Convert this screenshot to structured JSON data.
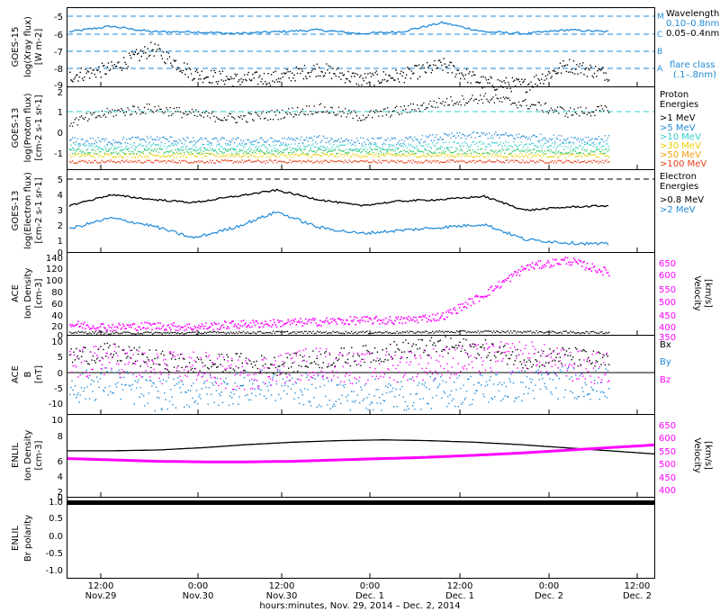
{
  "colors": {
    "black": "#000000",
    "blue": "#1f8ad8",
    "cyan": "#33cccc",
    "green": "#22c55e",
    "yellow": "#e8d000",
    "orange": "#f59e0b",
    "red": "#e53e1a",
    "magenta": "#ff00ff",
    "dash_blue": "#1f8ad8"
  },
  "x_axis": {
    "label": "hours:minutes, Nov. 29, 2014 – Dec. 2, 2014",
    "ticks": [
      {
        "time": "12:00",
        "day": "Nov.29"
      },
      {
        "time": "0:00",
        "day": "Nov.30"
      },
      {
        "time": "12:00",
        "day": "Nov.30"
      },
      {
        "time": "0:00",
        "day": "Dec. 1"
      },
      {
        "time": "12:00",
        "day": "Dec. 1"
      },
      {
        "time": "0:00",
        "day": "Dec. 2"
      },
      {
        "time": "12:00",
        "day": "Dec. 2"
      }
    ]
  },
  "panels": {
    "xray": {
      "ylabel": [
        "GOES-15",
        "log(Xray flux)",
        "[W m-2]"
      ],
      "yticks": [
        "-5",
        "-6",
        "-7",
        "-8",
        "-9"
      ],
      "flare_letters": [
        "M",
        "C",
        "B",
        "A"
      ],
      "legend": {
        "title": "Wavelength",
        "items": [
          "0.10–0.8nm",
          "0.05–0.4nm"
        ],
        "flare_title": "flare class",
        "flare_sub": "(.1–.8nm)"
      }
    },
    "proton": {
      "ylabel": [
        "GOES-13",
        "log(Proton flux)",
        "[cm-2 s-1 sr-1]"
      ],
      "yticks": [
        "2",
        "1",
        "0",
        "-1"
      ],
      "legend": {
        "title": [
          "Proton",
          "Energies"
        ],
        "items": [
          ">1 MeV",
          ">5 MeV",
          ">10 MeV",
          ">30 MeV",
          ">50 MeV",
          ">100 MeV"
        ]
      }
    },
    "electron": {
      "ylabel": [
        "GOES-13",
        "log(Electron flux)",
        "[cm-2 s-1 sr-1]"
      ],
      "yticks": [
        "5",
        "4",
        "3",
        "2",
        "1",
        "0"
      ],
      "legend": {
        "title": [
          "Electron",
          "Energies"
        ],
        "items": [
          ">0.8 MeV",
          ">2 MeV"
        ]
      }
    },
    "ace_density": {
      "ylabel": [
        "ACE",
        "Ion Density",
        "[cm-3]"
      ],
      "yticks": [
        "140",
        "120",
        "100",
        "80",
        "60",
        "40",
        "20",
        "0"
      ],
      "right_label": [
        "Velocity",
        "[km/s]"
      ],
      "right_ticks": [
        "650",
        "600",
        "550",
        "500",
        "450",
        "400",
        "350"
      ]
    },
    "ace_b": {
      "ylabel": [
        "ACE",
        "B",
        "[nT]"
      ],
      "yticks": [
        "10",
        "5",
        "0",
        "-5",
        "-10"
      ],
      "legend": [
        "Bx",
        "By",
        "Bz"
      ]
    },
    "enlil_density": {
      "ylabel": [
        "ENLIL",
        "Ion Density",
        "[cm-3]"
      ],
      "yticks": [
        "10",
        "8",
        "6",
        "4",
        "2",
        "0"
      ],
      "right_label": [
        "Velocity",
        "[km/s]"
      ],
      "right_ticks": [
        "650",
        "600",
        "550",
        "500",
        "450",
        "400"
      ]
    },
    "enlil_polarity": {
      "ylabel": [
        "ENLIL",
        "Br polarity"
      ],
      "yticks": [
        "1.0",
        "0.5",
        "0.0",
        "-0.5",
        "-1.0"
      ]
    }
  },
  "chart_data": [
    {
      "type": "line",
      "title": "",
      "ylabel": "log(Xray flux) [W m-2]",
      "ylim": [
        -9,
        -4.7
      ],
      "x_hours": [
        0,
        6,
        12,
        18,
        24,
        30,
        36,
        42,
        48,
        54,
        60,
        66,
        72,
        78
      ],
      "series": [
        {
          "name": "0.05–0.4nm",
          "values": [
            -8.4,
            -8.0,
            -6.9,
            -8.3,
            -8.6,
            -8.5,
            -8.0,
            -8.6,
            -8.4,
            -7.8,
            -8.8,
            -8.9,
            -7.8,
            -8.3
          ]
        },
        {
          "name": "0.10–0.8nm",
          "values": [
            -6.0,
            -5.7,
            -6.0,
            -6.0,
            -6.1,
            -6.0,
            -5.9,
            -6.1,
            -6.0,
            -5.5,
            -6.0,
            -6.1,
            -5.9,
            -6.0
          ]
        }
      ],
      "flare_class_levels": {
        "M": -5,
        "C": -6,
        "B": -7,
        "A": -8
      }
    },
    {
      "type": "scatter",
      "ylabel": "log(Proton flux)",
      "ylim": [
        -2,
        2
      ],
      "x_hours": [
        0,
        6,
        12,
        18,
        24,
        30,
        36,
        42,
        48,
        54,
        60,
        66,
        72,
        78
      ],
      "series": [
        {
          "name": ">1 MeV",
          "values": [
            0.3,
            0.8,
            1.0,
            0.7,
            0.5,
            0.7,
            1.0,
            0.6,
            0.9,
            1.3,
            1.5,
            1.2,
            0.8,
            0.9
          ]
        },
        {
          "name": ">5 MeV",
          "values": [
            -0.6,
            -0.6,
            -0.5,
            -0.6,
            -0.6,
            -0.6,
            -0.5,
            -0.6,
            -0.6,
            -0.4,
            -0.3,
            -0.4,
            -0.5,
            -0.5
          ]
        },
        {
          "name": ">10 MeV",
          "values": [
            -0.9,
            -0.9,
            -0.85,
            -0.9,
            -0.9,
            -0.9,
            -0.85,
            -0.9,
            -0.9,
            -0.8,
            -0.75,
            -0.8,
            -0.85,
            -0.85
          ]
        },
        {
          "name": ">30 MeV",
          "values": [
            -1.1,
            -1.1,
            -1.1,
            -1.1,
            -1.1,
            -1.1,
            -1.1,
            -1.1,
            -1.1,
            -1.1,
            -1.1,
            -1.1,
            -1.1,
            -1.1
          ]
        },
        {
          "name": ">50 MeV",
          "values": [
            -1.3,
            -1.3,
            -1.3,
            -1.3,
            -1.3,
            -1.3,
            -1.3,
            -1.3,
            -1.3,
            -1.3,
            -1.3,
            -1.3,
            -1.3,
            -1.3
          ]
        },
        {
          "name": ">100 MeV",
          "values": [
            -1.6,
            -1.6,
            -1.6,
            -1.6,
            -1.6,
            -1.6,
            -1.6,
            -1.6,
            -1.6,
            -1.6,
            -1.6,
            -1.6,
            -1.6,
            -1.6
          ]
        }
      ]
    },
    {
      "type": "line",
      "ylabel": "log(Electron flux)",
      "ylim": [
        0,
        5.3
      ],
      "x_hours": [
        0,
        6,
        12,
        18,
        24,
        30,
        36,
        42,
        48,
        54,
        60,
        66,
        72,
        78
      ],
      "series": [
        {
          "name": ">0.8 MeV",
          "values": [
            3.0,
            3.7,
            3.4,
            3.2,
            3.6,
            4.0,
            3.4,
            3.0,
            3.3,
            3.4,
            3.6,
            2.7,
            2.9,
            3.0
          ]
        },
        {
          "name": ">2 MeV",
          "values": [
            1.5,
            2.2,
            1.7,
            0.9,
            1.6,
            2.6,
            1.6,
            1.2,
            1.4,
            1.6,
            1.8,
            0.8,
            0.6,
            0.5
          ]
        }
      ]
    },
    {
      "type": "scatter",
      "ylabel": "Ion Density [cm-3]",
      "ylim": [
        0,
        140
      ],
      "y2lim": [
        350,
        650
      ],
      "x_hours": [
        0,
        6,
        12,
        18,
        24,
        30,
        36,
        42,
        48,
        54,
        60,
        66,
        72,
        78
      ],
      "series": [
        {
          "name": "Ion Density",
          "values": [
            5,
            4,
            4,
            4,
            5,
            5,
            5,
            5,
            5,
            6,
            6,
            6,
            5,
            5
          ]
        },
        {
          "name": "Velocity",
          "values": [
            390,
            380,
            385,
            380,
            390,
            395,
            400,
            405,
            405,
            420,
            500,
            600,
            625,
            580
          ]
        }
      ]
    },
    {
      "type": "scatter",
      "ylabel": "B [nT]",
      "ylim": [
        -12,
        12
      ],
      "x_hours": [
        0,
        6,
        12,
        18,
        24,
        30,
        36,
        42,
        48,
        54,
        60,
        66,
        72,
        78
      ],
      "series": [
        {
          "name": "Bx",
          "values": [
            6,
            7,
            5,
            3,
            4,
            3,
            5,
            6,
            8,
            9,
            8,
            5,
            6,
            4
          ]
        },
        {
          "name": "By",
          "values": [
            -4,
            -2,
            -6,
            -5,
            -4,
            -3,
            -5,
            -6,
            -6,
            -5,
            -4,
            -3,
            -2,
            -3
          ]
        },
        {
          "name": "Bz",
          "values": [
            3,
            5,
            2,
            3,
            0,
            2,
            4,
            2,
            3,
            4,
            5,
            6,
            3,
            2
          ]
        }
      ]
    },
    {
      "type": "line",
      "ylabel": "Ion Density [cm-3]",
      "ylim": [
        0,
        10.5
      ],
      "y2lim": [
        350,
        650
      ],
      "x_hours": [
        0,
        6,
        12,
        18,
        24,
        30,
        36,
        42,
        48,
        54,
        60,
        66,
        72,
        78
      ],
      "series": [
        {
          "name": "Ion Density",
          "values": [
            5.9,
            5.9,
            6.0,
            6.3,
            6.7,
            7.0,
            7.2,
            7.3,
            7.2,
            7.0,
            6.7,
            6.3,
            5.9,
            5.5
          ]
        },
        {
          "name": "Velocity",
          "values": [
            490,
            485,
            480,
            478,
            478,
            480,
            485,
            490,
            495,
            502,
            510,
            520,
            530,
            540
          ]
        }
      ]
    },
    {
      "type": "line",
      "ylabel": "Br polarity",
      "ylim": [
        -1.15,
        1.1
      ],
      "x_hours": [
        0,
        78
      ],
      "series": [
        {
          "name": "Br polarity",
          "values": [
            1,
            1
          ]
        }
      ]
    }
  ]
}
